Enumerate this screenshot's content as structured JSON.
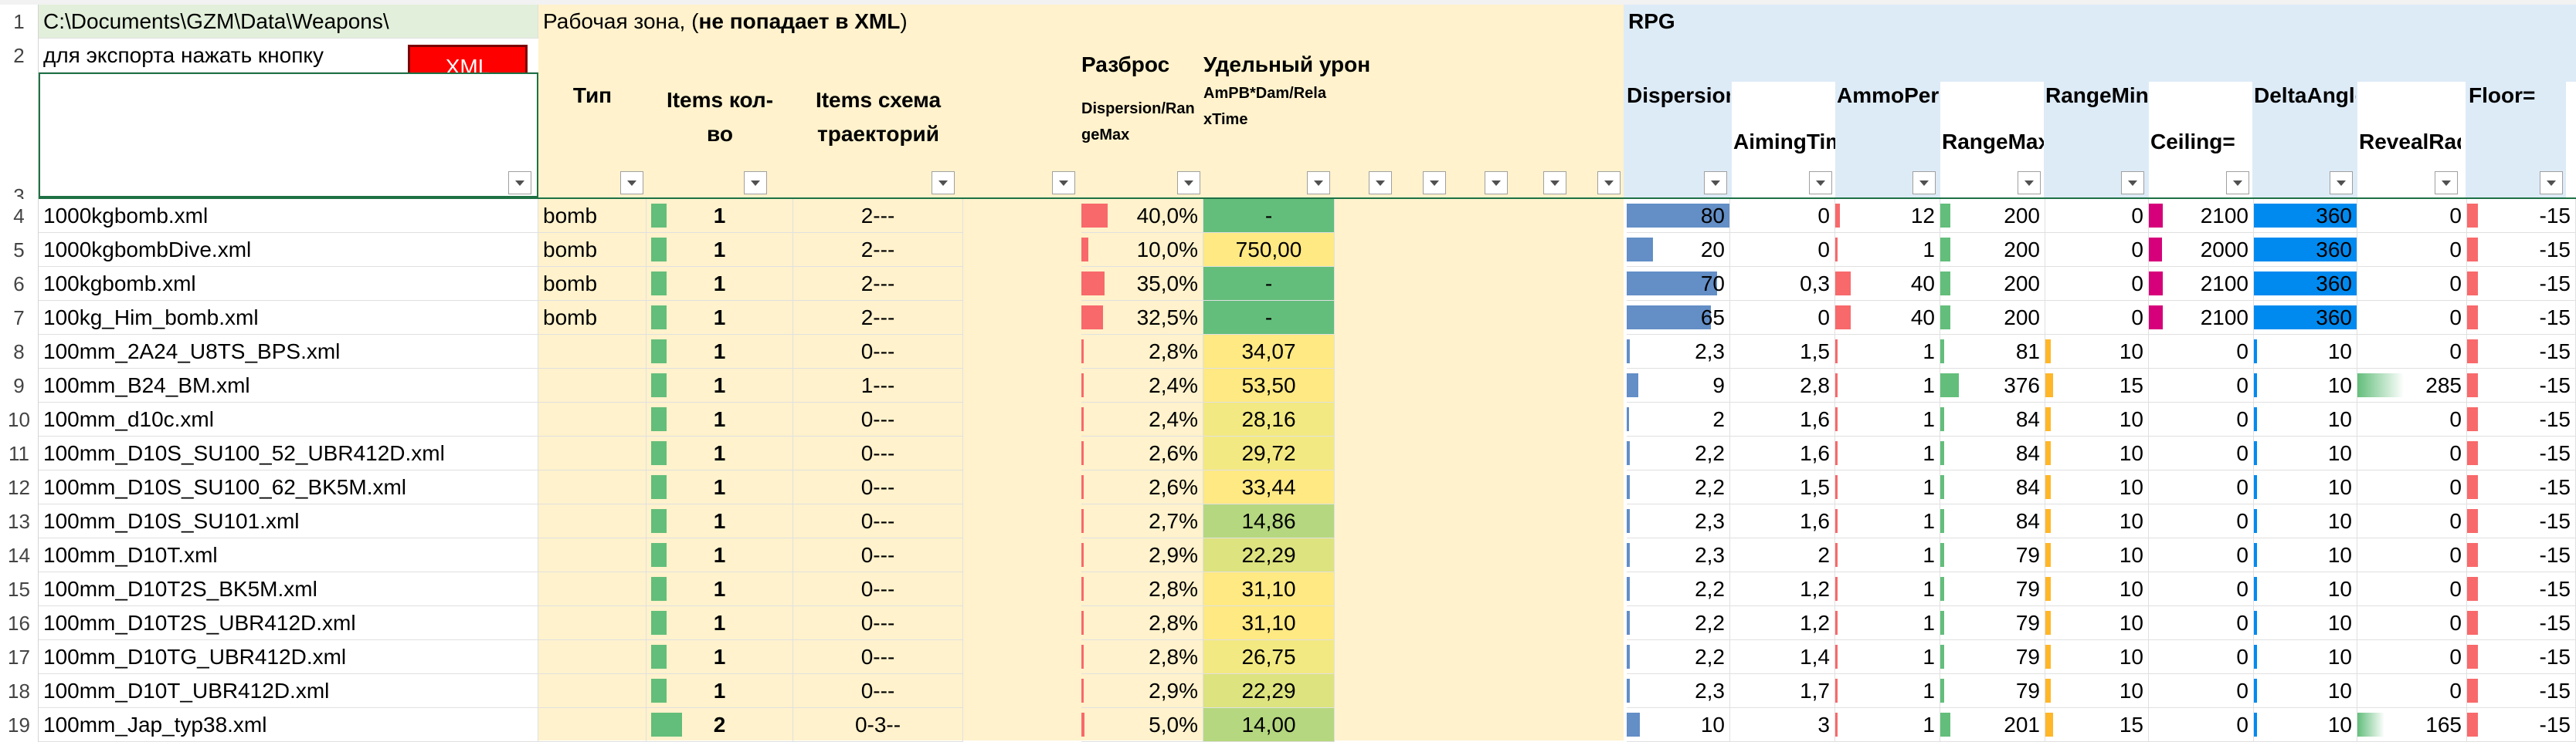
{
  "path_cell": "C:\\Documents\\GZM\\Data\\Weapons\\",
  "export_hint": "для экспорта нажать кнопку",
  "xml_button": "XML",
  "work_zone_prefix": "Рабочая зона, (",
  "work_zone_bold": "не попадает в XML",
  "work_zone_suffix": ")",
  "rpg_label": "RPG",
  "headers": {
    "type": "Тип",
    "items_count_l1": "Items кол-",
    "items_count_l2": "во",
    "items_scheme_l1": "Items схема",
    "items_scheme_l2": "траекторий",
    "spread": "Разброс",
    "spread_sub_l1": "Dispersion/Ran",
    "spread_sub_l2": "geMax",
    "dmg": "Удельный урон",
    "dmg_sub_l1": "AmPB*Dam/Rela",
    "dmg_sub_l2": "xTime",
    "dispersion": "Dispersion=",
    "aiming": "AimingTime",
    "ammo": "AmmoPerB",
    "rangemax": "RangeMax=",
    "rangemin": "RangeMin=",
    "ceiling": "Ceiling=",
    "delta": "DeltaAngle=",
    "reveal": "RevealRadiu",
    "floor": "Floor="
  },
  "row_numbers": [
    "1",
    "2",
    "3",
    "4",
    "5",
    "6",
    "7",
    "8",
    "9",
    "10",
    "11",
    "12",
    "13",
    "14",
    "15",
    "16",
    "17",
    "18",
    "19"
  ],
  "rows": [
    {
      "name": "1000kgbomb.xml",
      "type": "bomb",
      "count": "1",
      "scheme": "2---",
      "spread": "40,0%",
      "dmg": "-",
      "disp": "80",
      "aim": "0",
      "ammo": "12",
      "rmax": "200",
      "rmin": "0",
      "ceil": "2100",
      "delta": "360",
      "reveal": "0",
      "floor": "-15"
    },
    {
      "name": "1000kgbombDive.xml",
      "type": "bomb",
      "count": "1",
      "scheme": "2---",
      "spread": "10,0%",
      "dmg": "750,00",
      "disp": "20",
      "aim": "0",
      "ammo": "1",
      "rmax": "200",
      "rmin": "0",
      "ceil": "2000",
      "delta": "360",
      "reveal": "0",
      "floor": "-15"
    },
    {
      "name": "100kgbomb.xml",
      "type": "bomb",
      "count": "1",
      "scheme": "2---",
      "spread": "35,0%",
      "dmg": "-",
      "disp": "70",
      "aim": "0,3",
      "ammo": "40",
      "rmax": "200",
      "rmin": "0",
      "ceil": "2100",
      "delta": "360",
      "reveal": "0",
      "floor": "-15"
    },
    {
      "name": "100kg_Him_bomb.xml",
      "type": "bomb",
      "count": "1",
      "scheme": "2---",
      "spread": "32,5%",
      "dmg": "-",
      "disp": "65",
      "aim": "0",
      "ammo": "40",
      "rmax": "200",
      "rmin": "0",
      "ceil": "2100",
      "delta": "360",
      "reveal": "0",
      "floor": "-15"
    },
    {
      "name": "100mm_2A24_U8TS_BPS.xml",
      "type": "",
      "count": "1",
      "scheme": "0---",
      "spread": "2,8%",
      "dmg": "34,07",
      "disp": "2,3",
      "aim": "1,5",
      "ammo": "1",
      "rmax": "81",
      "rmin": "10",
      "ceil": "0",
      "delta": "10",
      "reveal": "0",
      "floor": "-15"
    },
    {
      "name": "100mm_B24_BM.xml",
      "type": "",
      "count": "1",
      "scheme": "1---",
      "spread": "2,4%",
      "dmg": "53,50",
      "disp": "9",
      "aim": "2,8",
      "ammo": "1",
      "rmax": "376",
      "rmin": "15",
      "ceil": "0",
      "delta": "10",
      "reveal": "285",
      "floor": "-15"
    },
    {
      "name": "100mm_d10c.xml",
      "type": "",
      "count": "1",
      "scheme": "0---",
      "spread": "2,4%",
      "dmg": "28,16",
      "disp": "2",
      "aim": "1,6",
      "ammo": "1",
      "rmax": "84",
      "rmin": "10",
      "ceil": "0",
      "delta": "10",
      "reveal": "0",
      "floor": "-15"
    },
    {
      "name": "100mm_D10S_SU100_52_UBR412D.xml",
      "type": "",
      "count": "1",
      "scheme": "0---",
      "spread": "2,6%",
      "dmg": "29,72",
      "disp": "2,2",
      "aim": "1,6",
      "ammo": "1",
      "rmax": "84",
      "rmin": "10",
      "ceil": "0",
      "delta": "10",
      "reveal": "0",
      "floor": "-15"
    },
    {
      "name": "100mm_D10S_SU100_62_BK5M.xml",
      "type": "",
      "count": "1",
      "scheme": "0---",
      "spread": "2,6%",
      "dmg": "33,44",
      "disp": "2,2",
      "aim": "1,5",
      "ammo": "1",
      "rmax": "84",
      "rmin": "10",
      "ceil": "0",
      "delta": "10",
      "reveal": "0",
      "floor": "-15"
    },
    {
      "name": "100mm_D10S_SU101.xml",
      "type": "",
      "count": "1",
      "scheme": "0---",
      "spread": "2,7%",
      "dmg": "14,86",
      "disp": "2,3",
      "aim": "1,6",
      "ammo": "1",
      "rmax": "84",
      "rmin": "10",
      "ceil": "0",
      "delta": "10",
      "reveal": "0",
      "floor": "-15"
    },
    {
      "name": "100mm_D10T.xml",
      "type": "",
      "count": "1",
      "scheme": "0---",
      "spread": "2,9%",
      "dmg": "22,29",
      "disp": "2,3",
      "aim": "2",
      "ammo": "1",
      "rmax": "79",
      "rmin": "10",
      "ceil": "0",
      "delta": "10",
      "reveal": "0",
      "floor": "-15"
    },
    {
      "name": "100mm_D10T2S_BK5M.xml",
      "type": "",
      "count": "1",
      "scheme": "0---",
      "spread": "2,8%",
      "dmg": "31,10",
      "disp": "2,2",
      "aim": "1,2",
      "ammo": "1",
      "rmax": "79",
      "rmin": "10",
      "ceil": "0",
      "delta": "10",
      "reveal": "0",
      "floor": "-15"
    },
    {
      "name": "100mm_D10T2S_UBR412D.xml",
      "type": "",
      "count": "1",
      "scheme": "0---",
      "spread": "2,8%",
      "dmg": "31,10",
      "disp": "2,2",
      "aim": "1,2",
      "ammo": "1",
      "rmax": "79",
      "rmin": "10",
      "ceil": "0",
      "delta": "10",
      "reveal": "0",
      "floor": "-15"
    },
    {
      "name": "100mm_D10TG_UBR412D.xml",
      "type": "",
      "count": "1",
      "scheme": "0---",
      "spread": "2,8%",
      "dmg": "26,75",
      "disp": "2,2",
      "aim": "1,4",
      "ammo": "1",
      "rmax": "79",
      "rmin": "10",
      "ceil": "0",
      "delta": "10",
      "reveal": "0",
      "floor": "-15"
    },
    {
      "name": "100mm_D10T_UBR412D.xml",
      "type": "",
      "count": "1",
      "scheme": "0---",
      "spread": "2,9%",
      "dmg": "22,29",
      "disp": "2,3",
      "aim": "1,7",
      "ammo": "1",
      "rmax": "79",
      "rmin": "10",
      "ceil": "0",
      "delta": "10",
      "reveal": "0",
      "floor": "-15"
    },
    {
      "name": "100mm_Jap_typ38.xml",
      "type": "",
      "count": "2",
      "scheme": "0-3--",
      "spread": "5,0%",
      "dmg": "14,00",
      "disp": "10",
      "aim": "3",
      "ammo": "1",
      "rmax": "201",
      "rmin": "15",
      "ceil": "0",
      "delta": "10",
      "reveal": "165",
      "floor": "-15"
    }
  ],
  "colors": {
    "green_path": "#e2efda",
    "work_zone": "#fff2cc",
    "rpg_zone": "#ddebf7",
    "bar_green": "#63be7b",
    "bar_red": "#f8696b",
    "bar_blue": "#638ec6",
    "bar_orange": "#ffb628",
    "bar_magenta": "#d6007b",
    "bar_lightblue": "#008aef"
  }
}
